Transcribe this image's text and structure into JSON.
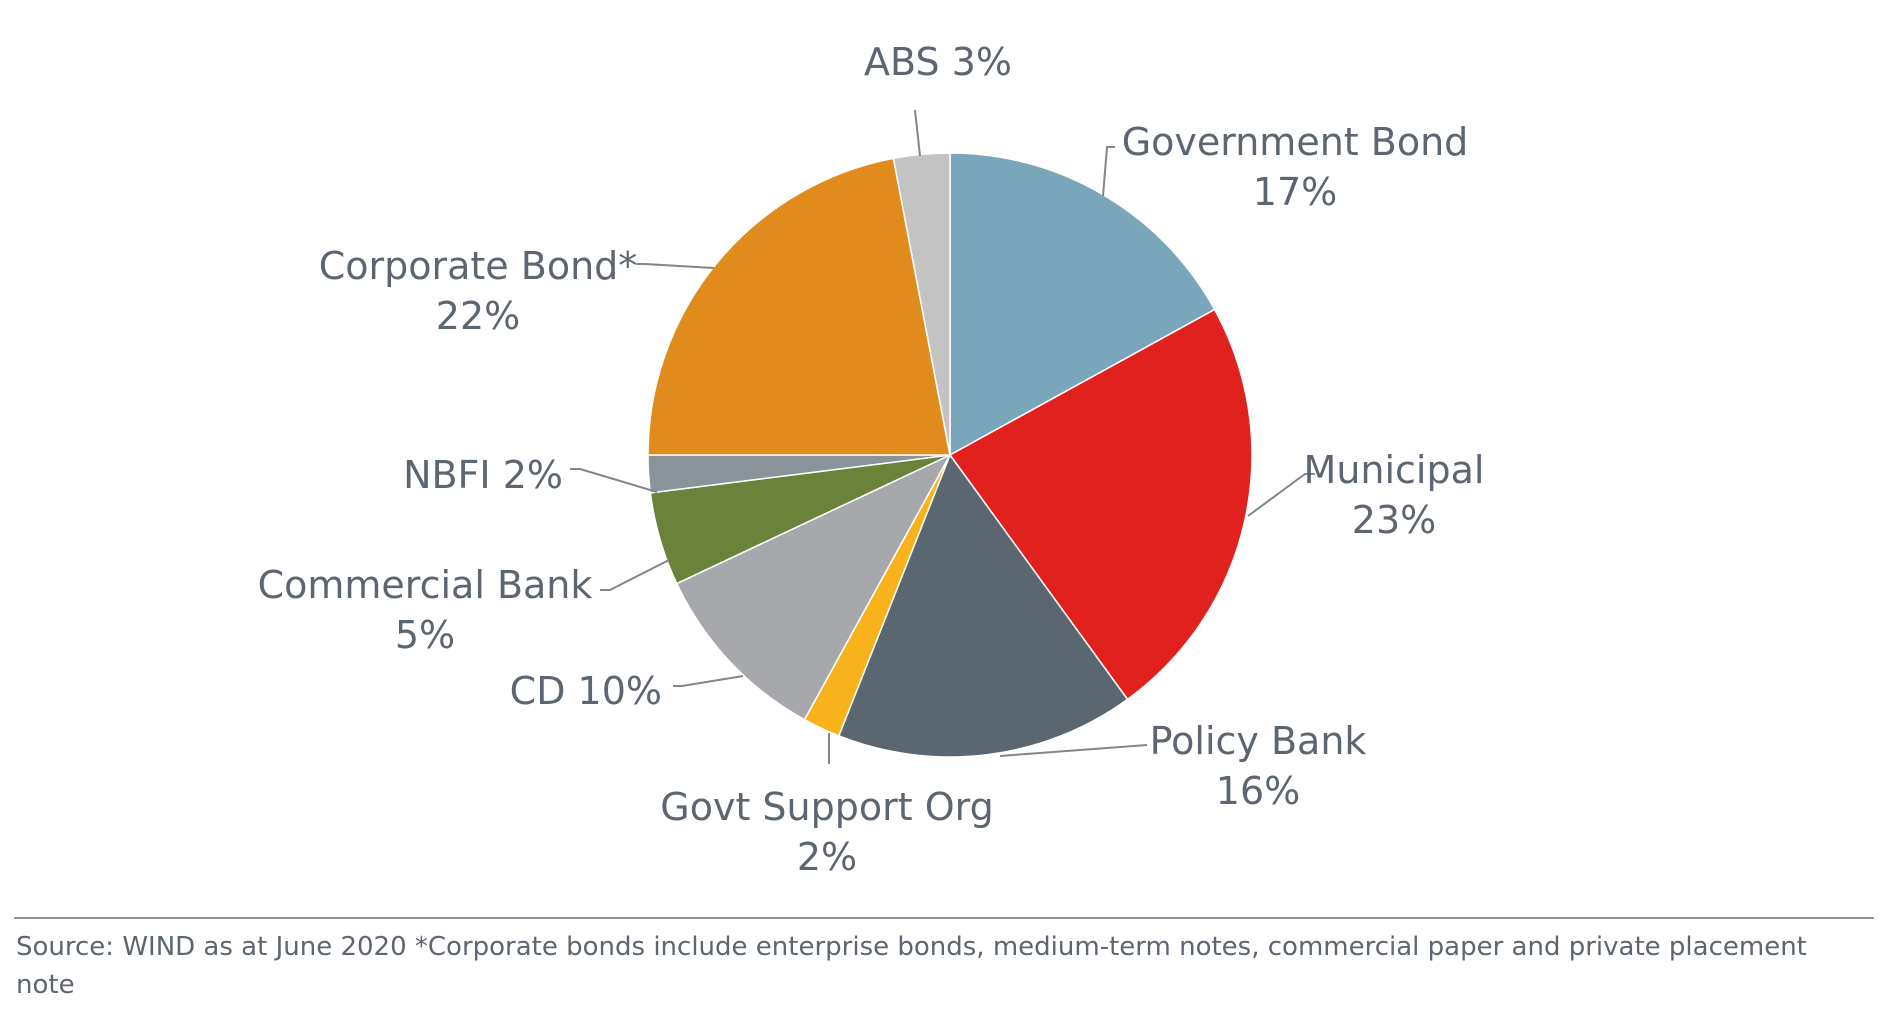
{
  "chart_data": {
    "type": "pie",
    "start_angle_deg": 0,
    "direction": "clockwise",
    "slices": [
      {
        "name": "Government Bond",
        "value": 17,
        "label_line1": "Government Bond",
        "label_line2": "17%",
        "color": "#7aa6bc"
      },
      {
        "name": "Municipal",
        "value": 23,
        "label_line1": "Municipal",
        "label_line2": "23%",
        "color": "#e1211e"
      },
      {
        "name": "Policy Bank",
        "value": 16,
        "label_line1": "Policy Bank",
        "label_line2": "16%",
        "color": "#5a6770"
      },
      {
        "name": "Govt Support Org",
        "value": 2,
        "label_line1": "Govt Support Org",
        "label_line2": "2%",
        "color": "#f7b21c"
      },
      {
        "name": "CD",
        "value": 10,
        "label_line1": "CD 10%",
        "label_line2": "",
        "color": "#a7a8ab"
      },
      {
        "name": "Commercial Bank",
        "value": 5,
        "label_line1": "Commercial Bank",
        "label_line2": "5%",
        "color": "#6a823a"
      },
      {
        "name": "NBFI",
        "value": 2,
        "label_line1": "NBFI 2%",
        "label_line2": "",
        "color": "#8a9399"
      },
      {
        "name": "Corporate Bond*",
        "value": 22,
        "label_line1": "Corporate Bond*",
        "label_line2": "22%",
        "color": "#e28b1d"
      },
      {
        "name": "ABS",
        "value": 3,
        "label_line1": "ABS 3%",
        "label_line2": "",
        "color": "#c3c3c3"
      }
    ]
  },
  "footer": {
    "source_text": "Source: WIND as at June 2020 *Corporate bonds include enterprise bonds, medium-term notes, commercial paper and private placement note"
  }
}
